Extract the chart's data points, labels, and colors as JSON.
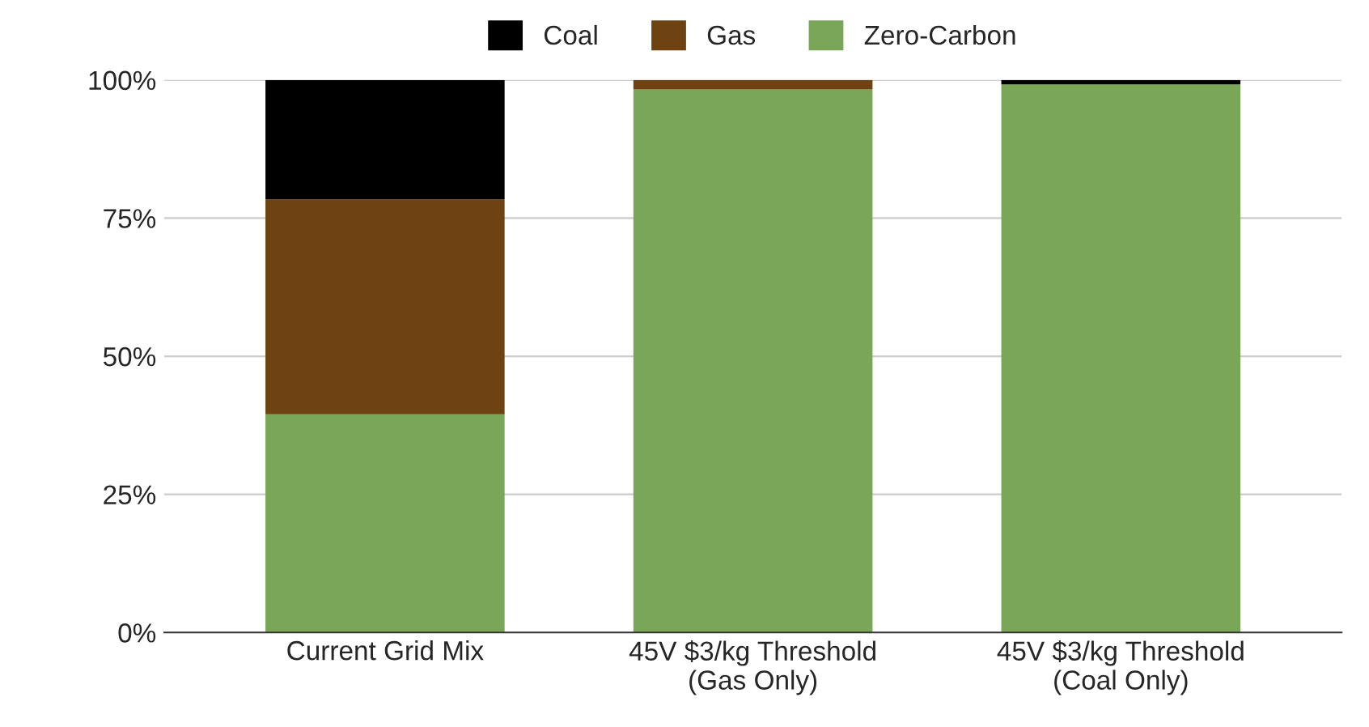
{
  "chart_data": {
    "type": "bar",
    "stacked": true,
    "categories": [
      "Current Grid Mix",
      "45V $3/kg Threshold\n(Gas Only)",
      "45V $3/kg Threshold\n(Coal Only)"
    ],
    "series": [
      {
        "name": "Zero-Carbon",
        "color": "#7aa657",
        "values": [
          39.5,
          98.3,
          99.2
        ]
      },
      {
        "name": "Gas",
        "color": "#6e4311",
        "values": [
          38.9,
          1.7,
          null
        ]
      },
      {
        "name": "Coal",
        "color": "#000000",
        "values": [
          21.6,
          null,
          0.8
        ]
      }
    ],
    "ylim": [
      0,
      100
    ],
    "yticks": [
      {
        "value": 0,
        "label": "0%"
      },
      {
        "value": 25,
        "label": "25%"
      },
      {
        "value": 50,
        "label": "50%"
      },
      {
        "value": 75,
        "label": "75%"
      },
      {
        "value": 100,
        "label": "100%"
      }
    ],
    "grid": "y",
    "legend": "top"
  }
}
